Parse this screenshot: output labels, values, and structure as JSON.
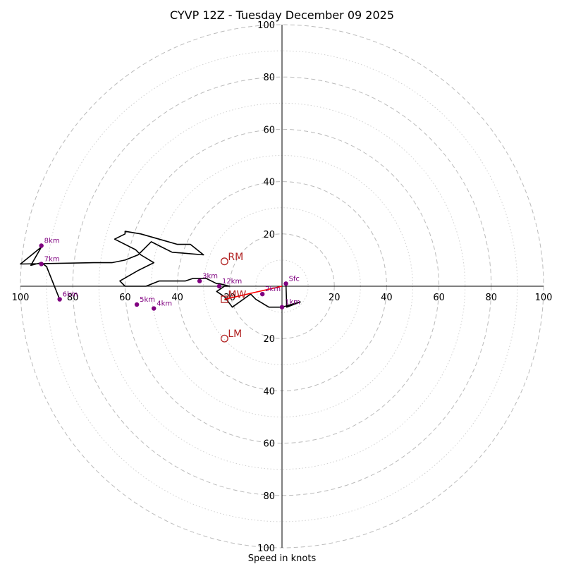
{
  "chart_data": {
    "type": "line",
    "title": "CYVP 12Z - Tuesday December 09 2025",
    "xlabel": "Speed in knots",
    "xlim": [
      -100,
      100
    ],
    "ylim": [
      -100,
      100
    ],
    "ring_ticks": [
      20,
      40,
      60,
      80,
      100
    ],
    "x_tick_labels": [
      "100",
      "80",
      "60",
      "40",
      "20",
      "20",
      "40",
      "60",
      "80",
      "100"
    ],
    "y_tick_labels_top": [
      "100",
      "80",
      "60",
      "40",
      "20"
    ],
    "y_tick_labels_bottom": [
      "20",
      "40",
      "60",
      "80",
      "100"
    ],
    "colors": {
      "trace": "#000000",
      "height_marker": "#800080",
      "motion": "#b22222",
      "shear_vector": "#ff0000",
      "grid": "#bbbbbb"
    },
    "hodograph_trace": {
      "u": [
        1.5,
        1.8,
        7,
        0,
        -5,
        -10,
        -12,
        -19,
        -22,
        -25,
        -22,
        -20,
        -24,
        -25,
        -29,
        -32,
        -34,
        -37,
        -47,
        -52,
        -55,
        -58,
        -60,
        -62,
        -55,
        -49,
        -54,
        -56,
        -64,
        -60,
        -60,
        -54,
        -47,
        -40,
        -35,
        -30,
        -42,
        -46,
        -50,
        -55,
        -60,
        -65,
        -70,
        -72,
        -100,
        -92,
        -92,
        -92,
        -96,
        -92,
        -90,
        -85
      ],
      "v": [
        1,
        -8,
        -6,
        -8,
        -8,
        -5,
        -3,
        -8,
        -4,
        -2,
        0,
        0,
        1,
        1,
        3,
        3,
        3,
        2,
        2,
        0,
        0,
        0,
        0,
        2,
        6,
        9,
        12,
        14,
        18,
        20,
        21,
        20,
        18,
        16,
        16,
        12,
        13,
        15,
        17,
        12,
        10,
        9,
        9,
        9,
        8.5,
        15,
        16,
        15,
        8,
        9,
        7.5,
        -5
      ]
    },
    "height_points": [
      {
        "label": "Sfc",
        "u": 1.5,
        "v": 1
      },
      {
        "label": "1km",
        "u": 0,
        "v": -8
      },
      {
        "label": "2km",
        "u": -7.5,
        "v": -3
      },
      {
        "label": "3km",
        "u": -31.5,
        "v": 2
      },
      {
        "label": "12km",
        "u": -24,
        "v": 0
      },
      {
        "label": "4km",
        "u": -49,
        "v": -8.5
      },
      {
        "label": "5km",
        "u": -55.5,
        "v": -7
      },
      {
        "label": "6km",
        "u": -85,
        "v": -5
      },
      {
        "label": "7km",
        "u": -92,
        "v": 8.5
      },
      {
        "label": "8km",
        "u": -92,
        "v": 15.5
      }
    ],
    "storm_motions": [
      {
        "label": "RM",
        "u": -22,
        "v": 9.5,
        "marker": "circle"
      },
      {
        "label": "LM",
        "u": -22,
        "v": -20,
        "marker": "circle"
      },
      {
        "label": "MW",
        "u": -22,
        "v": -5,
        "marker": "square"
      }
    ],
    "shear_vector": {
      "from": {
        "u": 0,
        "v": 0
      },
      "to": {
        "u": -22,
        "v": -5
      }
    }
  }
}
